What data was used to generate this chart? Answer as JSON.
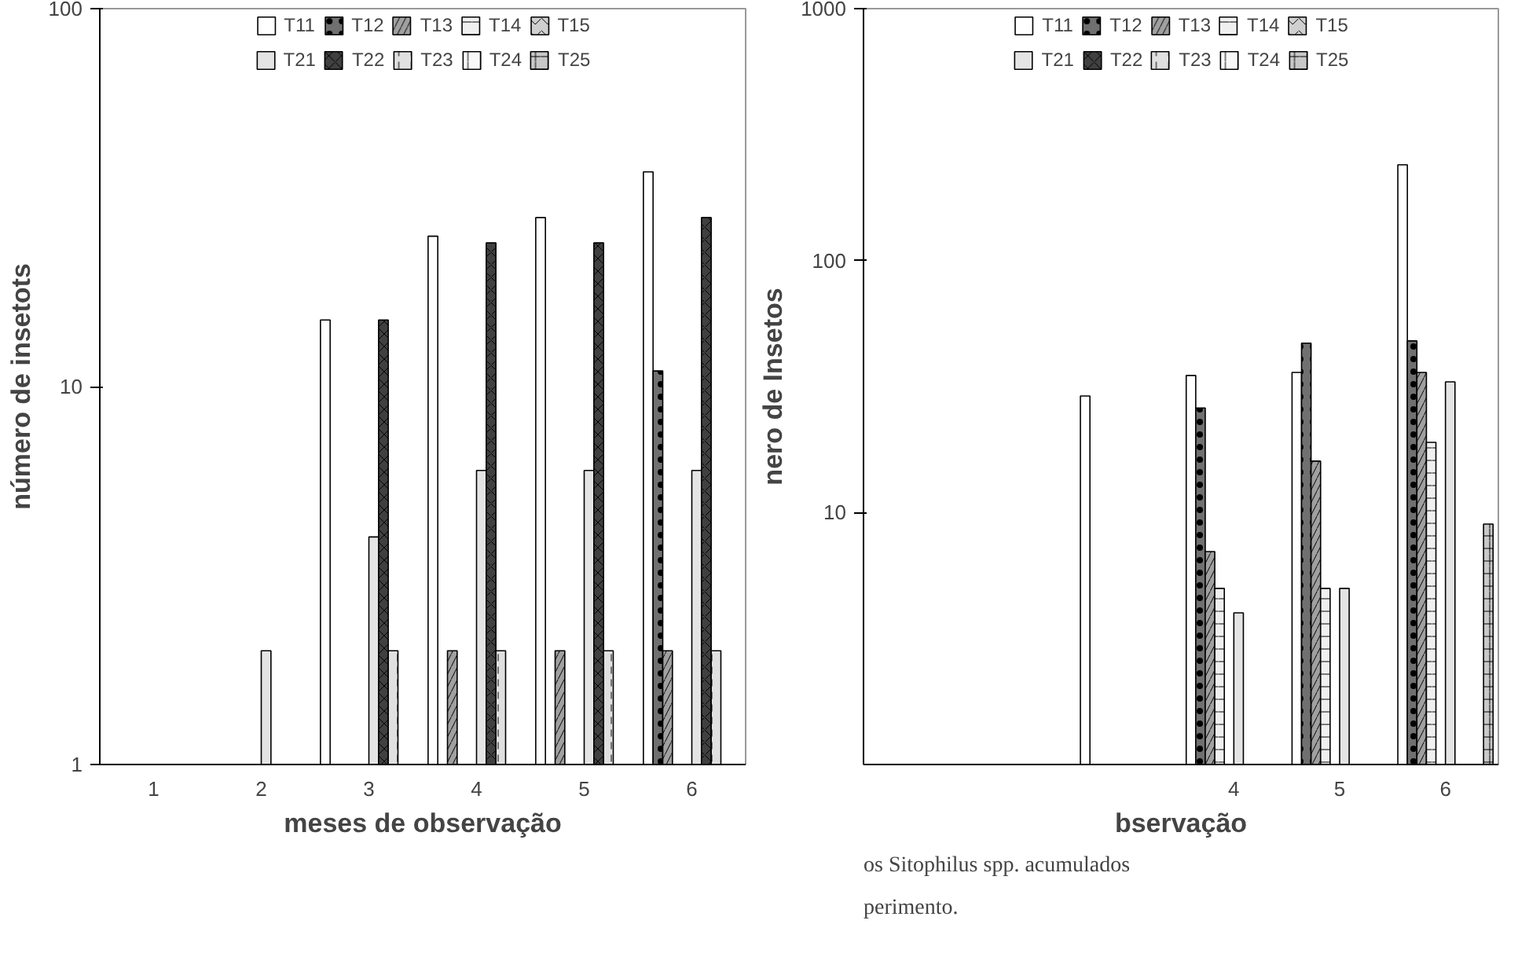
{
  "chart_data": [
    {
      "type": "bar",
      "categories": [
        null,
        null,
        null,
        "4",
        "5",
        "6"
      ],
      "xlabel": "bservação",
      "ylabel": "nero de Insetos",
      "log": "y",
      "ylim": [
        1,
        1000
      ],
      "yticks": [
        10,
        100,
        1000
      ],
      "grid": false,
      "legend": "top",
      "annotations": [
        "os Sitophilus spp. acumulados",
        "perimento."
      ],
      "series": [
        {
          "name": "T11",
          "color": "#ffffff",
          "values": [
            null,
            null,
            29,
            35,
            36,
            240
          ]
        },
        {
          "name": "T12",
          "color": "#707070",
          "values": [
            null,
            null,
            null,
            26,
            47,
            48
          ]
        },
        {
          "name": "T13",
          "color": "#a0a0a0",
          "values": [
            null,
            null,
            null,
            7,
            16,
            36
          ]
        },
        {
          "name": "T14",
          "color": "#f0f0f0",
          "values": [
            null,
            null,
            null,
            5,
            5,
            19
          ]
        },
        {
          "name": "T15",
          "color": "#d0d0d0",
          "values": [
            null,
            null,
            null,
            null,
            null,
            null
          ]
        },
        {
          "name": "T21",
          "color": "#e4e4e4",
          "values": [
            null,
            null,
            null,
            4,
            5,
            33
          ]
        },
        {
          "name": "T22",
          "color": "#404040",
          "values": [
            null,
            null,
            null,
            null,
            null,
            null
          ]
        },
        {
          "name": "T23",
          "color": "#e0e0e0",
          "values": [
            null,
            null,
            null,
            null,
            null,
            null
          ]
        },
        {
          "name": "T24",
          "color": "#f8f8f8",
          "values": [
            null,
            null,
            null,
            null,
            null,
            null
          ]
        },
        {
          "name": "T25",
          "color": "#c8c8c8",
          "values": [
            null,
            null,
            null,
            null,
            null,
            9
          ]
        }
      ]
    },
    {
      "type": "bar",
      "categories": [
        "1",
        "2",
        "3",
        "4",
        "5",
        "6"
      ],
      "xlabel": "meses de observação",
      "ylabel": "número de insetots",
      "log": "y",
      "ylim": [
        1,
        100
      ],
      "yticks": [
        1,
        10,
        100
      ],
      "grid": false,
      "legend": "top",
      "series": [
        {
          "name": "T11",
          "color": "#ffffff",
          "values": [
            null,
            null,
            15,
            25,
            28,
            37
          ]
        },
        {
          "name": "T12",
          "color": "#707070",
          "values": [
            null,
            null,
            null,
            null,
            null,
            11
          ]
        },
        {
          "name": "T13",
          "color": "#a0a0a0",
          "values": [
            null,
            null,
            null,
            2,
            2,
            2
          ]
        },
        {
          "name": "T14",
          "color": "#f0f0f0",
          "values": [
            null,
            null,
            null,
            null,
            null,
            null
          ]
        },
        {
          "name": "T15",
          "color": "#d0d0d0",
          "values": [
            null,
            null,
            null,
            null,
            null,
            null
          ]
        },
        {
          "name": "T21",
          "color": "#e4e4e4",
          "values": [
            null,
            2,
            4,
            6,
            6,
            6
          ]
        },
        {
          "name": "T22",
          "color": "#404040",
          "values": [
            null,
            null,
            15,
            24,
            24,
            28
          ]
        },
        {
          "name": "T23",
          "color": "#e0e0e0",
          "values": [
            null,
            null,
            2,
            2,
            2,
            2
          ]
        },
        {
          "name": "T24",
          "color": "#f8f8f8",
          "values": [
            null,
            null,
            null,
            null,
            null,
            null
          ]
        },
        {
          "name": "T25",
          "color": "#c8c8c8",
          "values": [
            null,
            null,
            null,
            null,
            null,
            null
          ]
        }
      ]
    }
  ]
}
